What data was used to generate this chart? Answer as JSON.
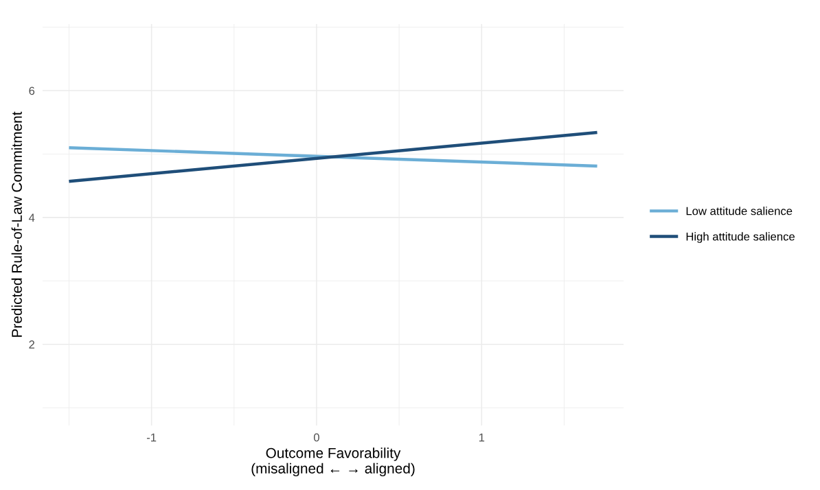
{
  "chart_data": {
    "type": "line",
    "xlabel": "Outcome Favorability\n(misaligned ← → aligned)",
    "ylabel": "Predicted Rule-of-Law Commitment",
    "x": [
      -1.5,
      1.7
    ],
    "series": [
      {
        "name": "Low attitude salience",
        "color": "#6baed6",
        "values": [
          5.1,
          4.81
        ]
      },
      {
        "name": "High attitude salience",
        "color": "#1f4e79",
        "values": [
          4.57,
          5.34
        ]
      }
    ],
    "xlim": [
      -1.66,
      1.86
    ],
    "ylim": [
      0.72,
      7.05
    ],
    "xticks": [
      -1,
      0,
      1
    ],
    "yticks": [
      2,
      4,
      6
    ],
    "grid": true,
    "legend": "right",
    "marker": "none",
    "line_style": "solid"
  }
}
